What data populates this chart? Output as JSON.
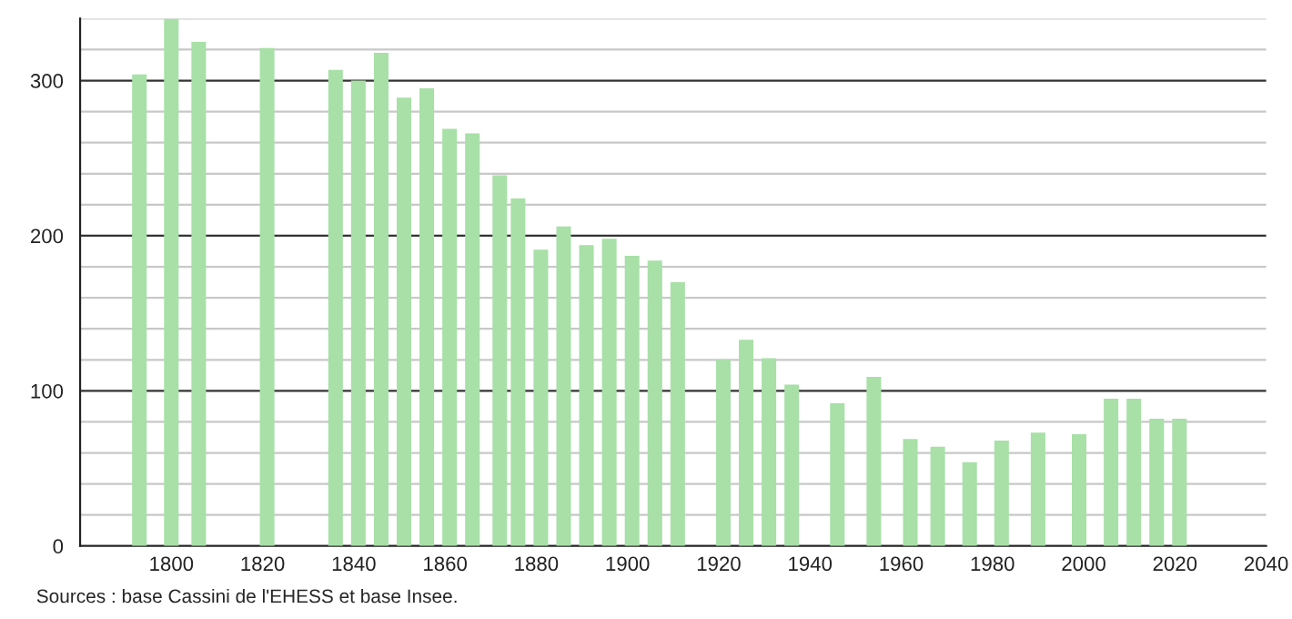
{
  "chart_data": {
    "type": "bar",
    "x": [
      1793,
      1800,
      1806,
      1821,
      1836,
      1841,
      1846,
      1851,
      1856,
      1861,
      1866,
      1872,
      1876,
      1881,
      1886,
      1891,
      1896,
      1901,
      1906,
      1911,
      1921,
      1926,
      1931,
      1936,
      1946,
      1954,
      1962,
      1968,
      1975,
      1982,
      1990,
      1999,
      2006,
      2011,
      2016,
      2021
    ],
    "values": [
      304,
      340,
      325,
      321,
      307,
      300,
      318,
      289,
      295,
      269,
      266,
      239,
      224,
      191,
      206,
      194,
      198,
      187,
      184,
      170,
      120,
      133,
      121,
      104,
      92,
      109,
      69,
      64,
      54,
      68,
      73,
      72,
      95,
      95,
      82,
      82
    ],
    "color": "#a8e0a8",
    "xlim": [
      1780,
      2040
    ],
    "xticks": [
      1800,
      1820,
      1840,
      1860,
      1880,
      1900,
      1920,
      1940,
      1960,
      1980,
      2000,
      2020,
      2040
    ],
    "ylim": [
      0,
      340
    ],
    "yticks": [
      0,
      {
        "value": 20,
        "label": null
      },
      {
        "value": 40,
        "label": null
      },
      {
        "value": 60,
        "label": null
      },
      {
        "value": 80,
        "label": null
      },
      100,
      {
        "value": 120,
        "label": null
      },
      {
        "value": 140,
        "label": null
      },
      {
        "value": 160,
        "label": null
      },
      {
        "value": 180,
        "label": null
      },
      200,
      {
        "value": 220,
        "label": null
      },
      {
        "value": 240,
        "label": null
      },
      {
        "value": 260,
        "label": null
      },
      {
        "value": 280,
        "label": null
      },
      300,
      {
        "value": 320,
        "label": null
      },
      {
        "value": 340,
        "label": null
      }
    ],
    "grid": "y",
    "annotations": [
      "Sources : base Cassini de l'EHESS et base Insee."
    ]
  }
}
